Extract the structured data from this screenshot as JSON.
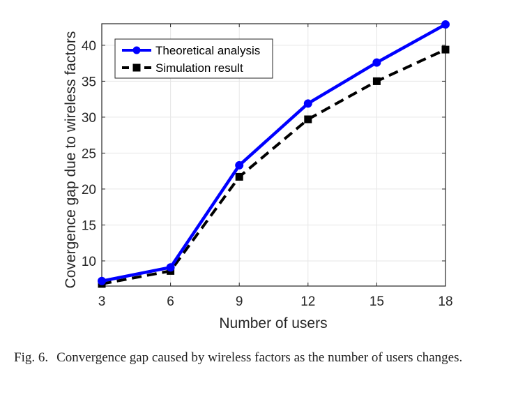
{
  "chart_data": {
    "type": "line",
    "title": "",
    "xlabel": "Number of users",
    "ylabel": "Covergence gap due to wireless factors",
    "x": [
      3,
      6,
      9,
      12,
      15,
      18
    ],
    "xlim": [
      3,
      18
    ],
    "ylim": [
      6.5,
      43
    ],
    "xticks": [
      "3",
      "6",
      "9",
      "12",
      "15",
      "18"
    ],
    "yticks": [
      "10",
      "15",
      "20",
      "25",
      "30",
      "35",
      "40"
    ],
    "grid": true,
    "legend_position": "top-left",
    "series": [
      {
        "name": "Theoretical analysis",
        "values": [
          7.2,
          9.1,
          23.3,
          31.9,
          37.6,
          42.9
        ],
        "color": "#0000ff",
        "line": "solid",
        "marker": "circle"
      },
      {
        "name": "Simulation result",
        "values": [
          6.8,
          8.6,
          21.7,
          29.7,
          35.0,
          39.4
        ],
        "color": "#000000",
        "line": "dashed",
        "marker": "square"
      }
    ]
  },
  "caption": {
    "label": "Fig. 6.",
    "text": "Convergence gap caused by wireless factors as the number of users changes."
  }
}
